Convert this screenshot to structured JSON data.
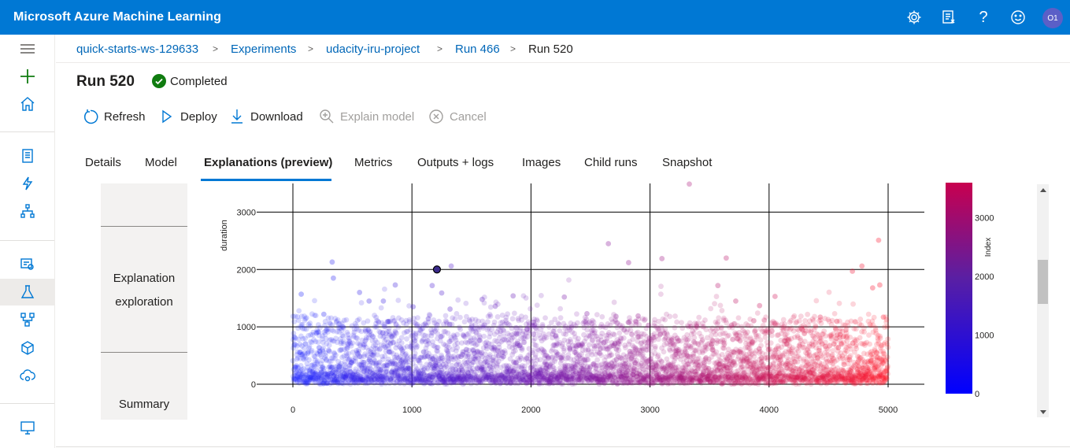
{
  "app": {
    "title": "Microsoft Azure Machine Learning",
    "avatar_initials": "O1"
  },
  "topbar_icons": [
    "gear-icon",
    "feedback-icon",
    "help-icon",
    "smiley-icon"
  ],
  "nav_icons": [
    "hamburger-icon",
    "plus-icon",
    "home-icon",
    "notebook-icon",
    "automl-icon",
    "designer-icon",
    "datasets-icon",
    "experiments-icon",
    "pipelines-icon",
    "models-icon",
    "endpoints-icon",
    "compute-icon"
  ],
  "breadcrumb": [
    "quick-starts-ws-129633",
    "Experiments",
    "udacity-iru-project",
    "Run 466",
    "Run 520"
  ],
  "run": {
    "title": "Run 520",
    "status": "Completed",
    "status_color": "#107c10"
  },
  "toolbar": {
    "refresh": "Refresh",
    "deploy": "Deploy",
    "download": "Download",
    "explain": "Explain model",
    "cancel": "Cancel"
  },
  "tabs": [
    "Details",
    "Model",
    "Explanations (preview)",
    "Metrics",
    "Outputs + logs",
    "Images",
    "Child runs",
    "Snapshot"
  ],
  "active_tab": "Explanations (preview)",
  "side_panel": {
    "item1": "Explanation exploration",
    "item2": "Summary"
  },
  "chart_data": {
    "type": "scatter",
    "title": "",
    "xlabel": "",
    "ylabel": "duration",
    "xlim": [
      0,
      5000
    ],
    "ylim": [
      0,
      3500
    ],
    "x_ticks": [
      "0",
      "1000",
      "2000",
      "3000",
      "4000",
      "5000"
    ],
    "y_ticks": [
      "0",
      "1000",
      "2000",
      "3000"
    ],
    "grid": true,
    "point_count": 5000,
    "color_by": "Index",
    "colorbar": {
      "label": "Index",
      "ticks": [
        "0",
        "1000",
        "2000",
        "3000"
      ],
      "range": [
        0,
        3600
      ],
      "colors": [
        "#0000ff",
        "#5a1fa3",
        "#c8004f"
      ]
    },
    "highlighted_point": {
      "x": 1210,
      "y": 2000
    },
    "outliers": [
      [
        330,
        2130
      ],
      [
        340,
        1850
      ],
      [
        70,
        1570
      ],
      [
        260,
        1220
      ],
      [
        420,
        1000
      ],
      [
        560,
        1600
      ],
      [
        640,
        1450
      ],
      [
        760,
        1450
      ],
      [
        860,
        1730
      ],
      [
        1010,
        1350
      ],
      [
        1170,
        1720
      ],
      [
        1250,
        1590
      ],
      [
        1320,
        1310
      ],
      [
        1330,
        2060
      ],
      [
        1590,
        1480
      ],
      [
        1700,
        1360
      ],
      [
        1850,
        1540
      ],
      [
        2020,
        1080
      ],
      [
        2280,
        1520
      ],
      [
        2470,
        1230
      ],
      [
        2650,
        2450
      ],
      [
        2820,
        2120
      ],
      [
        2900,
        1190
      ],
      [
        3100,
        2190
      ],
      [
        3330,
        3490
      ],
      [
        3640,
        2200
      ],
      [
        3570,
        1720
      ],
      [
        3720,
        1450
      ],
      [
        3920,
        1370
      ],
      [
        4050,
        1530
      ],
      [
        4430,
        1170
      ],
      [
        4700,
        1970
      ],
      [
        4780,
        2060
      ],
      [
        4870,
        1680
      ],
      [
        4920,
        2510
      ],
      [
        4930,
        1730
      ],
      [
        4960,
        1170
      ]
    ]
  }
}
